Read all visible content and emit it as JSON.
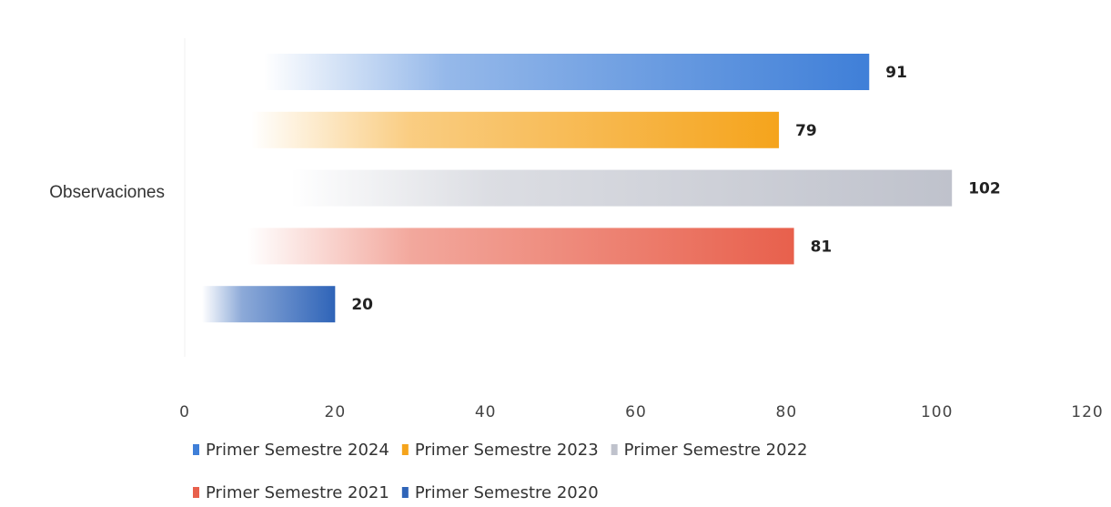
{
  "chart_data": {
    "type": "bar",
    "orientation": "horizontal",
    "categories": [
      "Observaciones"
    ],
    "series": [
      {
        "name": "Primer Semestre 2024",
        "values": [
          91
        ],
        "color": "#3f7fd8"
      },
      {
        "name": "Primer Semestre 2023",
        "values": [
          79
        ],
        "color": "#f5a41c"
      },
      {
        "name": "Primer Semestre 2022",
        "values": [
          102
        ],
        "color": "#bfc2cc"
      },
      {
        "name": "Primer Semestre 2021",
        "values": [
          81
        ],
        "color": "#e8604c"
      },
      {
        "name": "Primer Semestre 2020",
        "values": [
          20
        ],
        "color": "#2f64b8"
      }
    ],
    "title": "",
    "xlabel": "",
    "ylabel": "",
    "xlim": [
      0,
      120
    ],
    "xticks": [
      0,
      20,
      40,
      60,
      80,
      100,
      120
    ],
    "grid": false,
    "legend": "bottom"
  }
}
